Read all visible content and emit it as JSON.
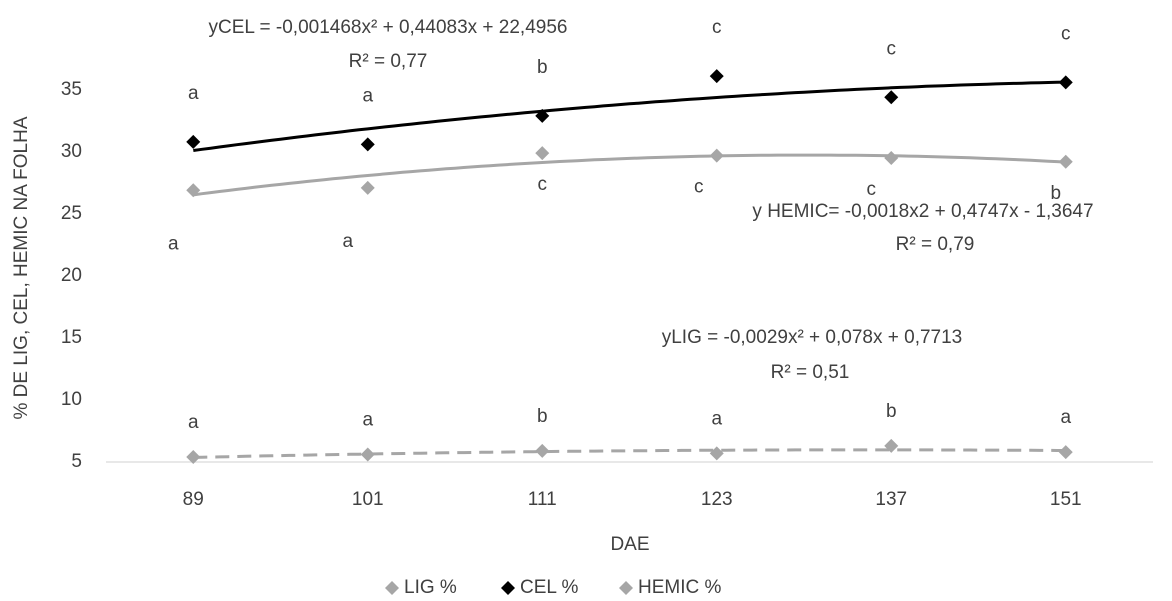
{
  "chart_data": {
    "type": "scatter",
    "x_label": "DAE",
    "y_label": "% DE LIG, CEL, HEMIC NA  FOLHA",
    "categories": [
      "89",
      "101",
      "111",
      "123",
      "137",
      "151"
    ],
    "ylim": [
      5,
      37
    ],
    "yticks": [
      5,
      10,
      15,
      20,
      25,
      30,
      35
    ],
    "grid": false,
    "legend": "bottom",
    "series": [
      {
        "name": "LIG %",
        "color": "#a6a6a6",
        "trendline_dashed": true,
        "values": [
          5.4,
          5.6,
          5.9,
          5.7,
          6.3,
          5.8
        ],
        "letters": [
          "a",
          "a",
          "b",
          "a",
          "b",
          "a"
        ]
      },
      {
        "name": "CEL %",
        "color": "#000000",
        "trendline_dashed": false,
        "values": [
          30.8,
          30.6,
          32.9,
          36.1,
          34.4,
          35.6
        ],
        "letters": [
          "a",
          "a",
          "b",
          "c",
          "c",
          "c"
        ]
      },
      {
        "name": "HEMIC %",
        "color": "#a6a6a6",
        "trendline_dashed": false,
        "values": [
          26.9,
          27.1,
          29.9,
          29.7,
          29.5,
          29.2
        ],
        "letters": [
          "a",
          "a",
          "c",
          "c",
          "c",
          "b"
        ]
      }
    ],
    "annotations": [
      "yCEL = -0,001468x² + 0,44083x + 22,4956",
      "R² = 0,77",
      "y HEMIC= -0,0018x2 + 0,4747x - 1,3647",
      "R² = 0,79",
      "yLIG = -0,0029x² + 0,078x + 0,7713",
      "R² = 0,51"
    ]
  }
}
